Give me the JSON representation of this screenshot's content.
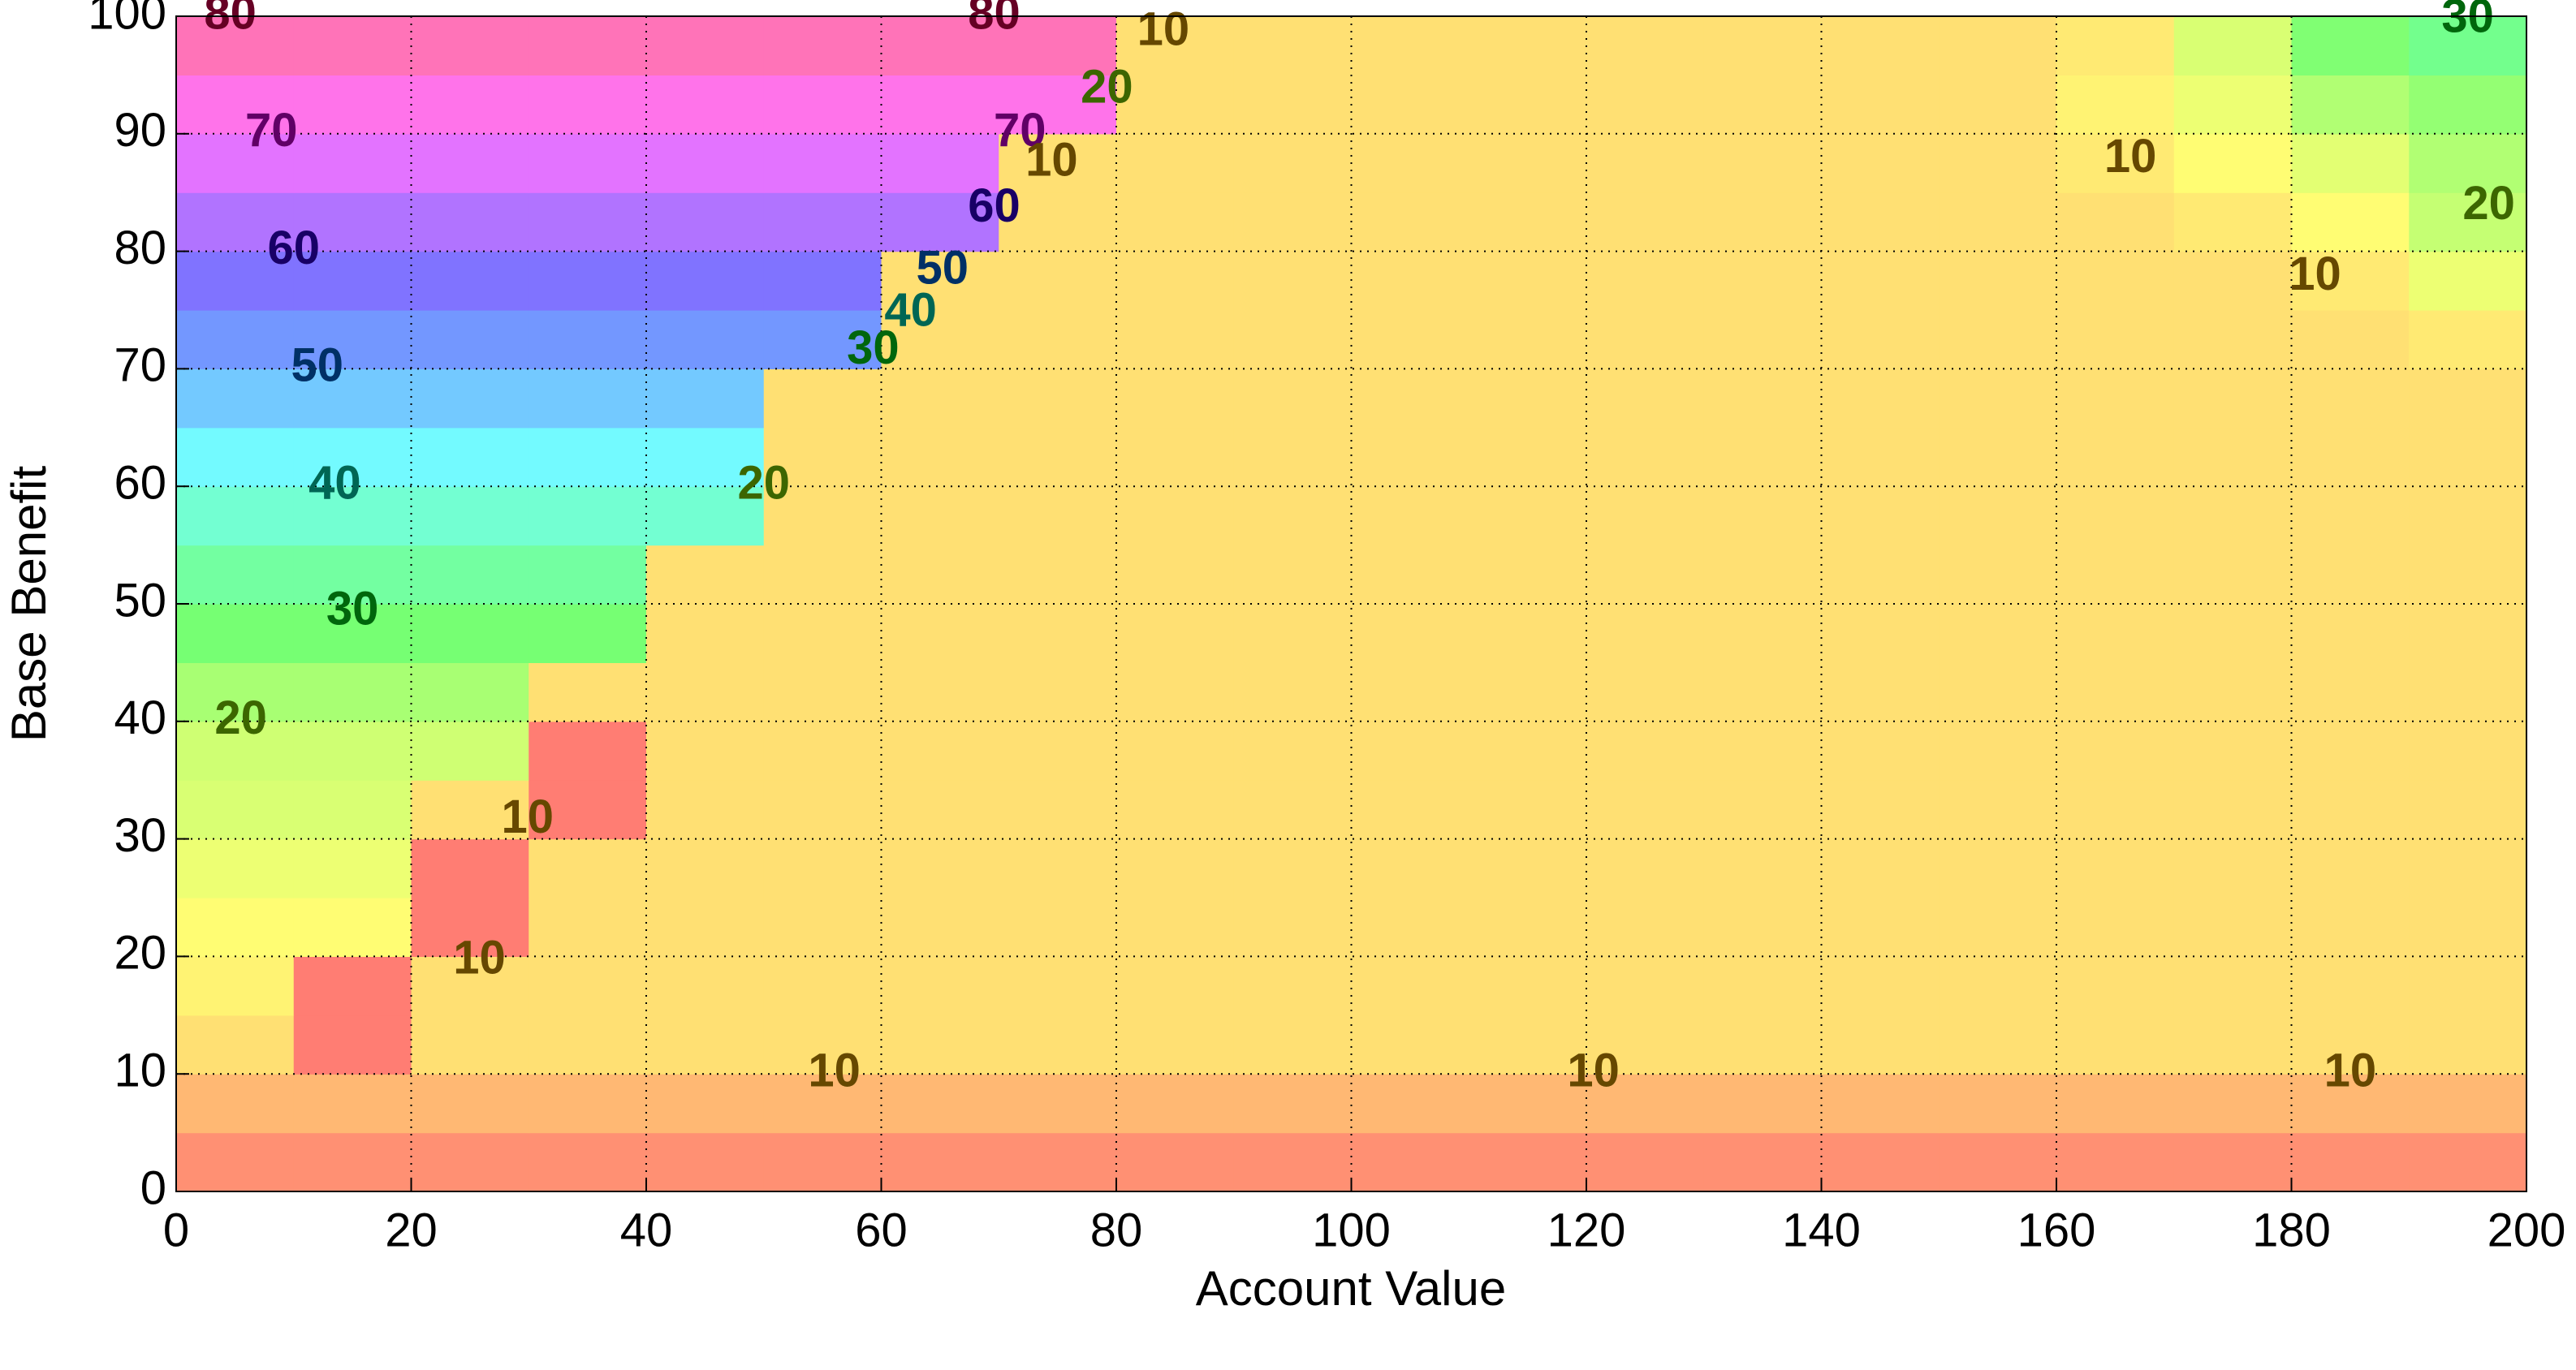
{
  "chart_data": {
    "type": "contourf",
    "x_label": "Account Value",
    "y_label": "Base Benefit",
    "xlim": [
      0,
      200
    ],
    "ylim": [
      0,
      100
    ],
    "xticks": [
      0,
      20,
      40,
      60,
      80,
      100,
      120,
      140,
      160,
      180,
      200
    ],
    "yticks": [
      0,
      10,
      20,
      30,
      40,
      50,
      60,
      70,
      80,
      90,
      100
    ],
    "grid": true,
    "colormap": "hsv",
    "x": [
      5,
      15,
      25,
      35,
      45,
      55,
      65,
      75,
      85,
      95,
      105,
      115,
      125,
      135,
      145,
      155,
      165,
      175,
      185,
      195
    ],
    "y": [
      2.5,
      7.5,
      12.5,
      17.5,
      22.5,
      27.5,
      32.5,
      37.5,
      42.5,
      47.5,
      52.5,
      57.5,
      62.5,
      67.5,
      72.5,
      77.5,
      82.5,
      87.5,
      92.5,
      97.5
    ],
    "z": [
      [
        3,
        3,
        3,
        3,
        3,
        3,
        3,
        3,
        3,
        3,
        3,
        3,
        3,
        3,
        3,
        3,
        3,
        3,
        3,
        3
      ],
      [
        7,
        7,
        7,
        7,
        7,
        7,
        7,
        7,
        7,
        7,
        7,
        7,
        7,
        7,
        7,
        7,
        7,
        7,
        7,
        7
      ],
      [
        11,
        1,
        11,
        11,
        11,
        11,
        11,
        11,
        11,
        11,
        11,
        11,
        11,
        11,
        11,
        11,
        11,
        11,
        11,
        11
      ],
      [
        13,
        1,
        11,
        11,
        11,
        11,
        11,
        11,
        11,
        11,
        11,
        11,
        11,
        11,
        11,
        11,
        11,
        11,
        11,
        11
      ],
      [
        14,
        14,
        1,
        11,
        11,
        11,
        11,
        11,
        11,
        11,
        11,
        11,
        11,
        11,
        11,
        11,
        11,
        11,
        11,
        11
      ],
      [
        16,
        16,
        1,
        11,
        11,
        11,
        11,
        11,
        11,
        11,
        11,
        11,
        11,
        11,
        11,
        11,
        11,
        11,
        11,
        11
      ],
      [
        18,
        18,
        11,
        1,
        11,
        11,
        11,
        11,
        11,
        11,
        11,
        11,
        11,
        11,
        11,
        11,
        11,
        11,
        11,
        11
      ],
      [
        19,
        19,
        19,
        1,
        11,
        11,
        11,
        11,
        11,
        11,
        11,
        11,
        11,
        11,
        11,
        11,
        11,
        11,
        11,
        11
      ],
      [
        23,
        23,
        23,
        11,
        11,
        11,
        11,
        11,
        11,
        11,
        11,
        11,
        11,
        11,
        11,
        11,
        11,
        11,
        11,
        11
      ],
      [
        28,
        28,
        28,
        28,
        11,
        11,
        11,
        11,
        11,
        11,
        11,
        11,
        11,
        11,
        11,
        11,
        11,
        11,
        11,
        11
      ],
      [
        33,
        33,
        33,
        33,
        11,
        11,
        11,
        11,
        11,
        11,
        11,
        11,
        11,
        11,
        11,
        11,
        11,
        11,
        11,
        11
      ],
      [
        38,
        38,
        38,
        38,
        38,
        11,
        11,
        11,
        11,
        11,
        11,
        11,
        11,
        11,
        11,
        11,
        11,
        11,
        11,
        11
      ],
      [
        43,
        43,
        43,
        43,
        43,
        11,
        11,
        11,
        11,
        11,
        11,
        11,
        11,
        11,
        11,
        11,
        11,
        11,
        11,
        11
      ],
      [
        48,
        48,
        48,
        48,
        48,
        11,
        11,
        11,
        11,
        11,
        11,
        11,
        11,
        11,
        11,
        11,
        11,
        11,
        11,
        11
      ],
      [
        53,
        53,
        53,
        53,
        53,
        53,
        11,
        11,
        11,
        11,
        11,
        11,
        11,
        11,
        11,
        11,
        11,
        11,
        11,
        12
      ],
      [
        58,
        58,
        58,
        58,
        58,
        58,
        11,
        11,
        11,
        11,
        11,
        11,
        11,
        11,
        11,
        11,
        11,
        11,
        12,
        16
      ],
      [
        63,
        63,
        63,
        63,
        63,
        63,
        63,
        11,
        11,
        11,
        11,
        11,
        11,
        11,
        11,
        11,
        11,
        12,
        14,
        20
      ],
      [
        68,
        68,
        68,
        68,
        68,
        68,
        68,
        11,
        11,
        11,
        11,
        11,
        11,
        11,
        11,
        11,
        12,
        14,
        17,
        22
      ],
      [
        73,
        73,
        73,
        73,
        73,
        73,
        73,
        73,
        11,
        11,
        11,
        11,
        11,
        11,
        11,
        11,
        13,
        16,
        22,
        25
      ],
      [
        78,
        78,
        78,
        78,
        78,
        78,
        78,
        78,
        11,
        11,
        11,
        11,
        11,
        11,
        11,
        11,
        12,
        18,
        27,
        31
      ]
    ],
    "contour_labels": [
      {
        "value": 80,
        "x": 4.6,
        "y": 100
      },
      {
        "value": 80,
        "x": 69.6,
        "y": 100
      },
      {
        "value": 70,
        "x": 8.1,
        "y": 90
      },
      {
        "value": 60,
        "x": 10,
        "y": 80
      },
      {
        "value": 50,
        "x": 12,
        "y": 70
      },
      {
        "value": 40,
        "x": 13.5,
        "y": 60
      },
      {
        "value": 30,
        "x": 15,
        "y": 49.3
      },
      {
        "value": 20,
        "x": 5.5,
        "y": 40
      },
      {
        "value": 20,
        "x": 50,
        "y": 60
      },
      {
        "value": 30,
        "x": 59.3,
        "y": 71.5
      },
      {
        "value": 40,
        "x": 62.5,
        "y": 74.7
      },
      {
        "value": 50,
        "x": 65.2,
        "y": 78.3
      },
      {
        "value": 60,
        "x": 69.6,
        "y": 83.6
      },
      {
        "value": 70,
        "x": 71.8,
        "y": 90
      },
      {
        "value": 10,
        "x": 74.5,
        "y": 87.5
      },
      {
        "value": 20,
        "x": 79.2,
        "y": 93.7
      },
      {
        "value": 10,
        "x": 84,
        "y": 98.6
      },
      {
        "value": 10,
        "x": 29.9,
        "y": 31.6
      },
      {
        "value": 10,
        "x": 25.8,
        "y": 19.6
      },
      {
        "value": 10,
        "x": 56,
        "y": 10
      },
      {
        "value": 10,
        "x": 120.6,
        "y": 10
      },
      {
        "value": 10,
        "x": 185,
        "y": 10
      },
      {
        "value": 10,
        "x": 166.3,
        "y": 87.8
      },
      {
        "value": 10,
        "x": 182,
        "y": 77.8
      },
      {
        "value": 20,
        "x": 196.8,
        "y": 83.8
      },
      {
        "value": 30,
        "x": 195,
        "y": 99.7
      }
    ]
  }
}
